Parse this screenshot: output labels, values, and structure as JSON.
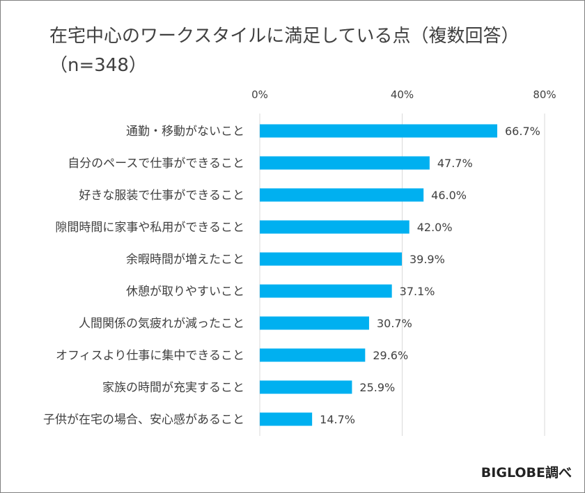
{
  "title_line1": "在宅中心のワークスタイルに満足している点（複数回答）",
  "title_line2": "（n=348）",
  "source": "BIGLOBE調べ",
  "chart_data": {
    "type": "bar",
    "orientation": "horizontal",
    "categories": [
      "通勤・移動がないこと",
      "自分のペースで仕事ができること",
      "好きな服装で仕事ができること",
      "隙間時間に家事や私用ができること",
      "余暇時間が増えたこと",
      "休憩が取りやすいこと",
      "人間関係の気疲れが減ったこと",
      "オフィスより仕事に集中できること",
      "家族の時間が充実すること",
      "子供が在宅の場合、安心感があること"
    ],
    "values": [
      66.7,
      47.7,
      46.0,
      42.0,
      39.9,
      37.1,
      30.7,
      29.6,
      25.9,
      14.7
    ],
    "value_labels": [
      "66.7%",
      "47.7%",
      "46.0%",
      "42.0%",
      "39.9%",
      "37.1%",
      "30.7%",
      "29.6%",
      "25.9%",
      "14.7%"
    ],
    "xlim": [
      0,
      80
    ],
    "xticks": [
      0,
      40,
      80
    ],
    "xtick_labels": [
      "0%",
      "40%",
      "80%"
    ],
    "axis_position": "top",
    "grid": true,
    "bar_color": "#00b0f0",
    "grid_color": "#d9d9d9"
  }
}
